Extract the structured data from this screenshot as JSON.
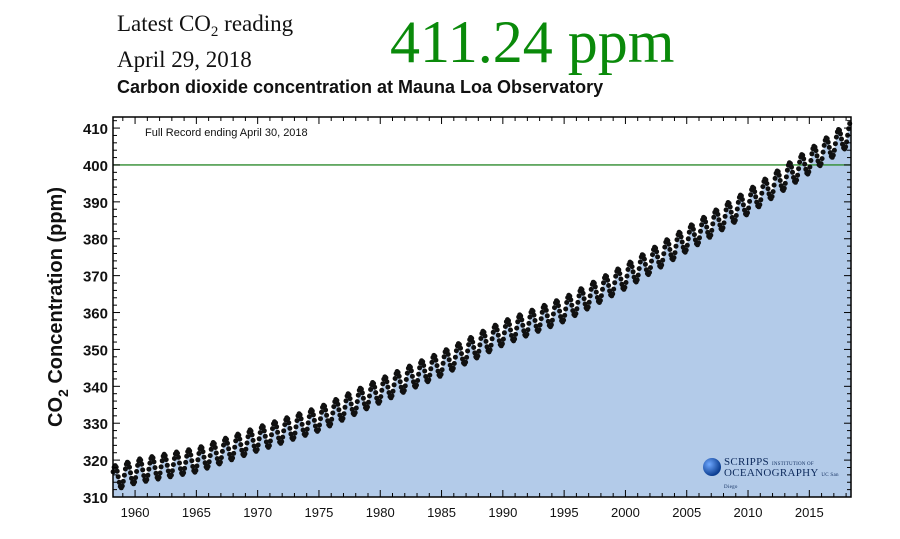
{
  "header": {
    "latest_prefix": "Latest CO",
    "latest_sub": "2",
    "latest_suffix": " reading",
    "date": "April 29, 2018",
    "reading": "411.24 ppm",
    "reading_color": "#0a8a0a"
  },
  "chart_data": {
    "type": "scatter",
    "title": "Carbon dioxide concentration at Mauna Loa Observatory",
    "annotation": "Full Record ending April 30, 2018",
    "ylabel_prefix": "CO",
    "ylabel_sub": "2",
    "ylabel_suffix": " Concentration (ppm)",
    "xlabel": "",
    "xlim": [
      1958.2,
      2018.4
    ],
    "ylim": [
      310,
      413
    ],
    "x_ticks": [
      1960,
      1965,
      1970,
      1975,
      1980,
      1985,
      1990,
      1995,
      2000,
      2005,
      2010,
      2015
    ],
    "y_ticks": [
      310,
      320,
      330,
      340,
      350,
      360,
      370,
      380,
      390,
      400,
      410
    ],
    "reference_line": {
      "y": 400,
      "color": "#2e8b2e"
    },
    "fill_color": "#b3cbe9",
    "marker_color": "#111111",
    "grid": false,
    "seasonal_amplitude_ppm": 3.2,
    "series": [
      {
        "x": [
          1958.5,
          1960,
          1965,
          1970,
          1975,
          1980,
          1985,
          1990,
          1995,
          2000,
          2005,
          2010,
          2015,
          2018.3
        ],
        "y": [
          315.3,
          316.9,
          320.0,
          325.7,
          331.1,
          338.8,
          346.1,
          354.4,
          360.8,
          369.7,
          379.8,
          389.9,
          401.0,
          408.5
        ]
      }
    ]
  },
  "logo": {
    "line1": "SCRIPPS",
    "line1_small": "INSTITUTION OF",
    "line2": "OCEANOGRAPHY",
    "line2_small": "UC San Diego"
  }
}
